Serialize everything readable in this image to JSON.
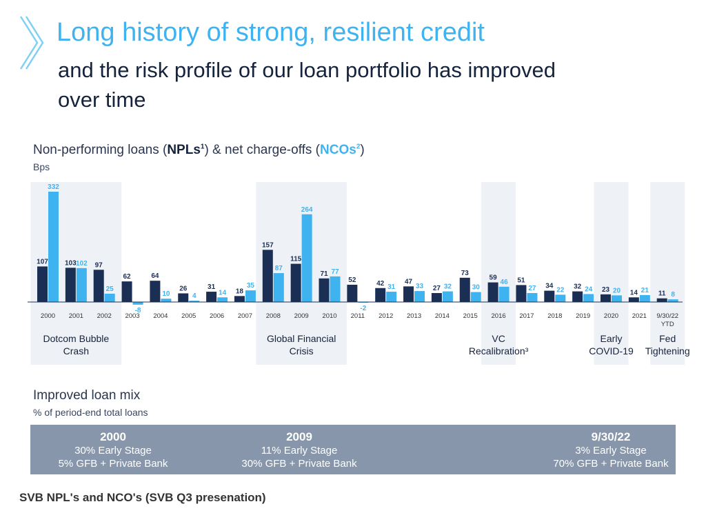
{
  "header": {
    "title": "Long history of strong, resilient credit",
    "subtitle": "and the risk profile of our loan portfolio has improved over time"
  },
  "chart_heading": {
    "prefix": "Non-performing loans (",
    "npl": "NPLs",
    "npl_sup": "1",
    "middle": ") & net charge-offs (",
    "nco": "NCOs",
    "nco_sup": "2",
    "suffix": ")",
    "unit": "Bps"
  },
  "chart_data": {
    "type": "bar",
    "categories": [
      "2000",
      "2001",
      "2002",
      "2003",
      "2004",
      "2005",
      "2006",
      "2007",
      "2008",
      "2009",
      "2010",
      "2011",
      "2012",
      "2013",
      "2014",
      "2015",
      "2016",
      "2017",
      "2018",
      "2019",
      "2020",
      "2021",
      "9/30/22 YTD"
    ],
    "series": [
      {
        "name": "NPLs",
        "values": [
          107,
          103,
          97,
          62,
          64,
          26,
          31,
          18,
          157,
          115,
          71,
          52,
          42,
          47,
          27,
          73,
          59,
          51,
          34,
          32,
          23,
          14,
          11
        ]
      },
      {
        "name": "NCOs",
        "values": [
          332,
          102,
          25,
          -8,
          10,
          4,
          14,
          35,
          87,
          264,
          77,
          -2,
          31,
          33,
          32,
          30,
          46,
          27,
          22,
          24,
          20,
          21,
          8
        ]
      }
    ],
    "colors": {
      "npl": "#1b2f55",
      "nco": "#3fb3f0",
      "highlight": "#eef1f5"
    },
    "ylabel": "Bps",
    "highlight_periods": [
      {
        "from": 0,
        "to": 2,
        "label": [
          "Dotcom Bubble",
          "Crash"
        ]
      },
      {
        "from": 8,
        "to": 10,
        "label": [
          "Global Financial",
          "Crisis"
        ]
      },
      {
        "from": 16,
        "to": 16,
        "label": [
          "VC",
          "Recalibration³"
        ]
      },
      {
        "from": 20,
        "to": 20,
        "label": [
          "Early",
          "COVID-19"
        ]
      },
      {
        "from": 22,
        "to": 22,
        "label": [
          "Fed",
          "Tightening"
        ]
      }
    ]
  },
  "loan_mix": {
    "title": "Improved loan mix",
    "subtitle": "% of period-end total loans",
    "columns": [
      {
        "year": "2000",
        "early": "30% Early Stage",
        "gfb": "5% GFB + Private Bank"
      },
      {
        "year": "2009",
        "early": "11% Early Stage",
        "gfb": "30% GFB + Private Bank"
      },
      {
        "year": "9/30/22",
        "early": "3% Early Stage",
        "gfb": "70% GFB + Private Bank"
      }
    ]
  },
  "caption": "SVB NPL's and NCO's (SVB Q3 presenation)"
}
